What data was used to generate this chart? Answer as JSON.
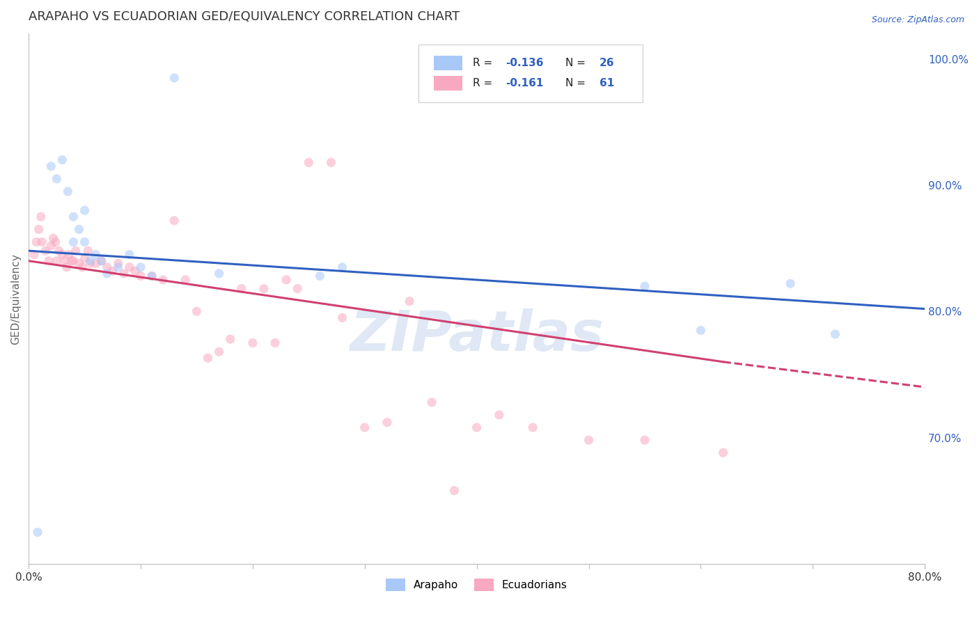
{
  "title": "ARAPAHO VS ECUADORIAN GED/EQUIVALENCY CORRELATION CHART",
  "source": "Source: ZipAtlas.com",
  "ylabel": "GED/Equivalency",
  "xlim": [
    0.0,
    0.8
  ],
  "ylim": [
    0.6,
    1.02
  ],
  "xticks": [
    0.0,
    0.1,
    0.2,
    0.3,
    0.4,
    0.5,
    0.6,
    0.7,
    0.8
  ],
  "xtick_labels": [
    "0.0%",
    "",
    "",
    "",
    "",
    "",
    "",
    "",
    "80.0%"
  ],
  "yticks_right": [
    0.7,
    0.8,
    0.9,
    1.0
  ],
  "ytick_labels_right": [
    "70.0%",
    "80.0%",
    "90.0%",
    "100.0%"
  ],
  "arapaho_color": "#a8c8f8",
  "ecuadorian_color": "#f8a8c0",
  "arapaho_line_color": "#3060c0",
  "ecuadorian_line_color": "#d04070",
  "arapaho_R": -0.136,
  "arapaho_N": 26,
  "ecuadorian_R": -0.161,
  "ecuadorian_N": 61,
  "arapaho_x": [
    0.008,
    0.13,
    0.02,
    0.03,
    0.025,
    0.035,
    0.04,
    0.04,
    0.045,
    0.05,
    0.05,
    0.055,
    0.06,
    0.065,
    0.07,
    0.08,
    0.09,
    0.1,
    0.11,
    0.17,
    0.26,
    0.28,
    0.55,
    0.6,
    0.68,
    0.72
  ],
  "arapaho_y": [
    0.625,
    0.985,
    0.915,
    0.92,
    0.905,
    0.895,
    0.875,
    0.855,
    0.865,
    0.855,
    0.88,
    0.84,
    0.845,
    0.84,
    0.83,
    0.835,
    0.845,
    0.835,
    0.828,
    0.83,
    0.828,
    0.835,
    0.82,
    0.785,
    0.822,
    0.782
  ],
  "ecuadorian_x": [
    0.005,
    0.007,
    0.009,
    0.011,
    0.012,
    0.015,
    0.018,
    0.02,
    0.022,
    0.024,
    0.025,
    0.027,
    0.03,
    0.032,
    0.034,
    0.036,
    0.038,
    0.04,
    0.042,
    0.045,
    0.048,
    0.05,
    0.053,
    0.055,
    0.06,
    0.065,
    0.07,
    0.075,
    0.08,
    0.085,
    0.09,
    0.095,
    0.1,
    0.11,
    0.12,
    0.13,
    0.14,
    0.15,
    0.16,
    0.17,
    0.18,
    0.19,
    0.2,
    0.21,
    0.22,
    0.23,
    0.24,
    0.25,
    0.27,
    0.28,
    0.3,
    0.32,
    0.34,
    0.36,
    0.38,
    0.4,
    0.42,
    0.45,
    0.5,
    0.55,
    0.62
  ],
  "ecuadorian_y": [
    0.845,
    0.855,
    0.865,
    0.875,
    0.855,
    0.848,
    0.84,
    0.852,
    0.858,
    0.855,
    0.84,
    0.848,
    0.845,
    0.84,
    0.835,
    0.845,
    0.84,
    0.84,
    0.848,
    0.838,
    0.835,
    0.842,
    0.848,
    0.838,
    0.838,
    0.84,
    0.835,
    0.832,
    0.838,
    0.83,
    0.835,
    0.832,
    0.828,
    0.828,
    0.825,
    0.872,
    0.825,
    0.8,
    0.763,
    0.768,
    0.778,
    0.818,
    0.775,
    0.818,
    0.775,
    0.825,
    0.818,
    0.918,
    0.918,
    0.795,
    0.708,
    0.712,
    0.808,
    0.728,
    0.658,
    0.708,
    0.718,
    0.708,
    0.698,
    0.698,
    0.688
  ],
  "watermark": "ZIPatlas",
  "background_color": "#ffffff",
  "grid_color": "#d8d8d8",
  "title_color": "#333333",
  "axis_label_color": "#666666",
  "marker_size": 90,
  "marker_alpha": 0.55
}
